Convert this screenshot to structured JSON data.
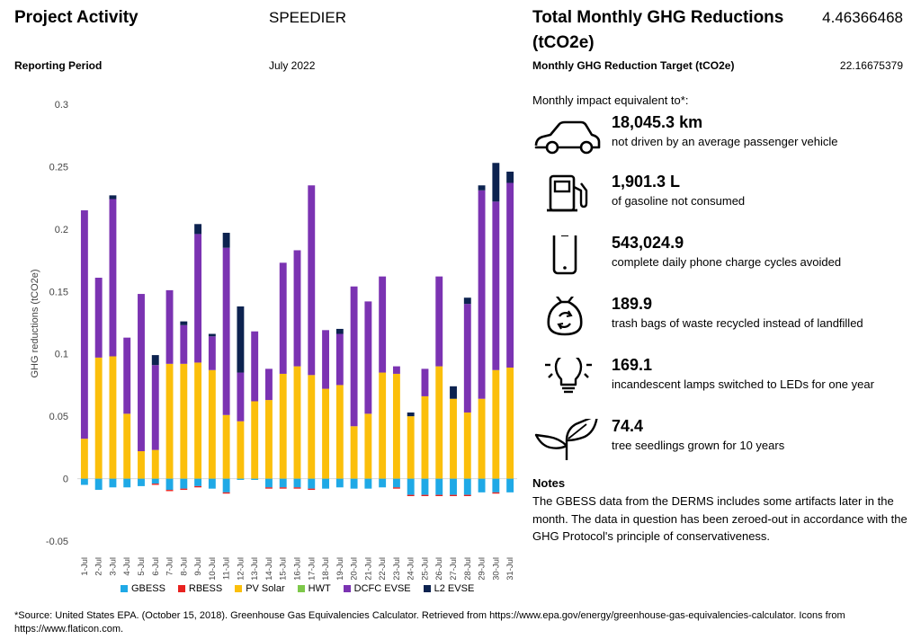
{
  "header": {
    "project_label": "Project Activity",
    "project_value": "SPEEDIER",
    "period_label": "Reporting Period",
    "period_value": "July 2022",
    "total_label_line1": "Total Monthly GHG Reductions",
    "total_label_line2": "(tCO2e)",
    "total_value": "4.46366468",
    "target_label": "Monthly GHG Reduction Target (tCO2e)",
    "target_value": "22.16675379"
  },
  "equivalents": {
    "intro": "Monthly impact equivalent to*:",
    "items": [
      {
        "icon": "car-icon",
        "value": "18,045.3 km",
        "desc": "not driven by an average passenger vehicle"
      },
      {
        "icon": "fuel-pump-icon",
        "value": "1,901.3 L",
        "desc": "of gasoline not consumed"
      },
      {
        "icon": "smartphone-icon",
        "value": "543,024.9",
        "desc": "complete daily phone charge cycles avoided"
      },
      {
        "icon": "recycle-bag-icon",
        "value": "189.9",
        "desc": "trash bags of waste recycled instead of landfilled"
      },
      {
        "icon": "light-bulb-icon",
        "value": "169.1",
        "desc": "incandescent lamps switched to LEDs for one year"
      },
      {
        "icon": "seedling-icon",
        "value": "74.4",
        "desc": "tree seedlings grown for 10 years"
      }
    ]
  },
  "notes": {
    "title": "Notes",
    "body": "The GBESS data from the DERMS includes some artifacts later in the month. The data in question has been zeroed-out in accordance with the GHG Protocol's principle of conservativeness."
  },
  "footnote": "*Source: United States EPA. (October 15, 2018). Greenhouse Gas Equivalencies Calculator. Retrieved from https://www.epa.gov/energy/greenhouse-gas-equivalencies-calculator. Icons from https://www.flaticon.com.",
  "chart_data": {
    "type": "bar",
    "stacked": true,
    "title": "",
    "xlabel": "",
    "ylabel": "GHG reductions (tCO2e)",
    "ylim": [
      -0.05,
      0.3
    ],
    "yticks": [
      "-0.05",
      "0",
      "0.05",
      "0.1",
      "0.15",
      "0.2",
      "0.25",
      "0.3"
    ],
    "grid": false,
    "legend_position": "bottom",
    "categories": [
      "1-Jul",
      "2-Jul",
      "3-Jul",
      "4-Jul",
      "5-Jul",
      "6-Jul",
      "7-Jul",
      "8-Jul",
      "9-Jul",
      "10-Jul",
      "11-Jul",
      "12-Jul",
      "13-Jul",
      "14-Jul",
      "15-Jul",
      "16-Jul",
      "17-Jul",
      "18-Jul",
      "19-Jul",
      "20-Jul",
      "21-Jul",
      "22-Jul",
      "23-Jul",
      "24-Jul",
      "25-Jul",
      "26-Jul",
      "27-Jul",
      "28-Jul",
      "29-Jul",
      "30-Jul",
      "31-Jul"
    ],
    "series": [
      {
        "name": "GBESS",
        "color": "#1fa9e6",
        "values": [
          -0.005,
          -0.009,
          -0.007,
          -0.007,
          -0.006,
          -0.004,
          -0.009,
          -0.008,
          -0.006,
          -0.008,
          -0.011,
          -0.001,
          -0.001,
          -0.007,
          -0.007,
          -0.007,
          -0.008,
          -0.008,
          -0.007,
          -0.008,
          -0.008,
          -0.007,
          -0.007,
          -0.013,
          -0.013,
          -0.013,
          -0.013,
          -0.013,
          -0.011,
          -0.011,
          -0.011
        ]
      },
      {
        "name": "RBESS",
        "color": "#e8221f",
        "values": [
          0,
          0,
          0,
          0,
          0,
          -0.001,
          -0.001,
          -0.001,
          -0.001,
          0,
          -0.001,
          0,
          0,
          -0.001,
          -0.001,
          -0.001,
          -0.001,
          0,
          0,
          0,
          0,
          0,
          -0.001,
          -0.001,
          -0.001,
          -0.001,
          -0.001,
          -0.001,
          0,
          -0.001,
          0
        ]
      },
      {
        "name": "PV Solar",
        "color": "#fbbf0b",
        "values": [
          0.032,
          0.097,
          0.098,
          0.052,
          0.022,
          0.023,
          0.092,
          0.092,
          0.093,
          0.087,
          0.051,
          0.046,
          0.062,
          0.063,
          0.084,
          0.09,
          0.083,
          0.072,
          0.075,
          0.042,
          0.052,
          0.085,
          0.084,
          0.05,
          0.066,
          0.09,
          0.064,
          0.053,
          0.064,
          0.087,
          0.089
        ]
      },
      {
        "name": "HWT",
        "color": "#7ec84a",
        "values": [
          0,
          0,
          0,
          0,
          0,
          0,
          0,
          0,
          0,
          0,
          0,
          0,
          0,
          0,
          0,
          0,
          0,
          0,
          0,
          0,
          0,
          0,
          0,
          0,
          0,
          0,
          0,
          0,
          0,
          0,
          0
        ]
      },
      {
        "name": "DCFC EVSE",
        "color": "#7b33b2",
        "values": [
          0.183,
          0.064,
          0.126,
          0.061,
          0.126,
          0.068,
          0.059,
          0.031,
          0.103,
          0.027,
          0.134,
          0.039,
          0.056,
          0.025,
          0.089,
          0.093,
          0.152,
          0.047,
          0.041,
          0.112,
          0.09,
          0.077,
          0.006,
          0,
          0.022,
          0.072,
          0,
          0.087,
          0.167,
          0.135,
          0.148
        ]
      },
      {
        "name": "L2 EVSE",
        "color": "#0d2350",
        "values": [
          0,
          0,
          0.003,
          0,
          0,
          0.008,
          0,
          0.003,
          0.008,
          0.002,
          0.012,
          0.053,
          0,
          0,
          0,
          0,
          0,
          0,
          0.004,
          0,
          0,
          0,
          0,
          0.003,
          0,
          0,
          0.01,
          0.005,
          0.004,
          0.031,
          0.009
        ]
      }
    ]
  }
}
